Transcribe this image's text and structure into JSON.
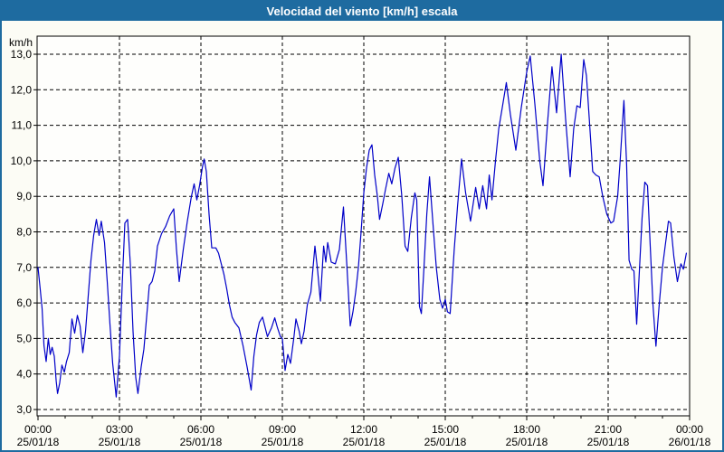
{
  "title": "Velocidad del viento [km/h] escala",
  "colors": {
    "titlebar": "#1E6BA0",
    "window_border": "#1E6BA0",
    "window_background": "#FCFCF5",
    "plot_background": "#FEFEFC",
    "grid": "#000000",
    "axis": "#000000",
    "tick_text": "#000000",
    "title_text": "#FFFFFF",
    "line": "#0000C8"
  },
  "chart_data": {
    "type": "line",
    "title": "Velocidad del viento [km/h] escala",
    "ylabel": "km/h",
    "xlabel": "",
    "grid": "dashed",
    "legend": "none",
    "ylim": [
      2.8,
      13.5
    ],
    "xlim_hours": [
      0,
      24
    ],
    "y_unit_label": "km/h",
    "y_ticks": [
      {
        "value": 13,
        "label": "13,0"
      },
      {
        "value": 12,
        "label": "12,0"
      },
      {
        "value": 11,
        "label": "11,0"
      },
      {
        "value": 10,
        "label": "10,0"
      },
      {
        "value": 9,
        "label": "9,0"
      },
      {
        "value": 8,
        "label": "8,0"
      },
      {
        "value": 7,
        "label": "7,0"
      },
      {
        "value": 6,
        "label": "6,0"
      },
      {
        "value": 5,
        "label": "5,0"
      },
      {
        "value": 4,
        "label": "4,0"
      },
      {
        "value": 3,
        "label": "3,0"
      }
    ],
    "x_ticks": [
      {
        "hour": 0,
        "time": "00:00",
        "date": "25/01/18"
      },
      {
        "hour": 3,
        "time": "03:00",
        "date": "25/01/18"
      },
      {
        "hour": 6,
        "time": "06:00",
        "date": "25/01/18"
      },
      {
        "hour": 9,
        "time": "09:00",
        "date": "25/01/18"
      },
      {
        "hour": 12,
        "time": "12:00",
        "date": "25/01/18"
      },
      {
        "hour": 15,
        "time": "15:00",
        "date": "25/01/18"
      },
      {
        "hour": 18,
        "time": "18:00",
        "date": "25/01/18"
      },
      {
        "hour": 21,
        "time": "21:00",
        "date": "25/01/18"
      },
      {
        "hour": 24,
        "time": "00:00",
        "date": "26/01/18"
      }
    ],
    "minor_x_tick_hours": 1,
    "series": [
      {
        "name": "Velocidad del viento",
        "color": "#0000C8",
        "points_hours_kmh": [
          [
            0.0,
            7.0
          ],
          [
            0.08,
            6.4
          ],
          [
            0.15,
            5.85
          ],
          [
            0.22,
            4.8
          ],
          [
            0.3,
            4.35
          ],
          [
            0.38,
            5.0
          ],
          [
            0.45,
            4.55
          ],
          [
            0.52,
            4.75
          ],
          [
            0.6,
            4.5
          ],
          [
            0.67,
            3.8
          ],
          [
            0.72,
            3.45
          ],
          [
            0.8,
            3.75
          ],
          [
            0.88,
            4.25
          ],
          [
            0.97,
            4.05
          ],
          [
            1.05,
            4.35
          ],
          [
            1.15,
            4.6
          ],
          [
            1.25,
            5.55
          ],
          [
            1.35,
            5.15
          ],
          [
            1.45,
            5.65
          ],
          [
            1.55,
            5.35
          ],
          [
            1.65,
            4.6
          ],
          [
            1.75,
            5.2
          ],
          [
            1.85,
            6.2
          ],
          [
            1.95,
            7.2
          ],
          [
            2.05,
            7.9
          ],
          [
            2.15,
            8.35
          ],
          [
            2.25,
            7.9
          ],
          [
            2.33,
            8.3
          ],
          [
            2.45,
            7.7
          ],
          [
            2.55,
            6.6
          ],
          [
            2.65,
            5.4
          ],
          [
            2.75,
            4.3
          ],
          [
            2.88,
            3.35
          ],
          [
            3.0,
            4.5
          ],
          [
            3.1,
            6.5
          ],
          [
            3.2,
            8.25
          ],
          [
            3.3,
            8.35
          ],
          [
            3.4,
            7.1
          ],
          [
            3.5,
            5.2
          ],
          [
            3.6,
            3.9
          ],
          [
            3.68,
            3.45
          ],
          [
            3.8,
            4.2
          ],
          [
            3.9,
            4.7
          ],
          [
            4.0,
            5.6
          ],
          [
            4.1,
            6.5
          ],
          [
            4.2,
            6.6
          ],
          [
            4.3,
            6.9
          ],
          [
            4.4,
            7.6
          ],
          [
            4.55,
            7.95
          ],
          [
            4.7,
            8.15
          ],
          [
            4.85,
            8.45
          ],
          [
            5.0,
            8.65
          ],
          [
            5.1,
            7.5
          ],
          [
            5.2,
            6.6
          ],
          [
            5.35,
            7.5
          ],
          [
            5.5,
            8.3
          ],
          [
            5.65,
            9.0
          ],
          [
            5.75,
            9.35
          ],
          [
            5.85,
            8.9
          ],
          [
            5.95,
            9.3
          ],
          [
            6.05,
            9.8
          ],
          [
            6.12,
            10.05
          ],
          [
            6.2,
            9.7
          ],
          [
            6.3,
            8.5
          ],
          [
            6.4,
            7.55
          ],
          [
            6.55,
            7.55
          ],
          [
            6.65,
            7.4
          ],
          [
            6.75,
            7.1
          ],
          [
            6.85,
            6.8
          ],
          [
            6.95,
            6.4
          ],
          [
            7.05,
            5.95
          ],
          [
            7.15,
            5.6
          ],
          [
            7.25,
            5.45
          ],
          [
            7.4,
            5.3
          ],
          [
            7.55,
            4.8
          ],
          [
            7.7,
            4.2
          ],
          [
            7.85,
            3.55
          ],
          [
            7.95,
            4.5
          ],
          [
            8.05,
            5.1
          ],
          [
            8.15,
            5.45
          ],
          [
            8.27,
            5.6
          ],
          [
            8.45,
            5.05
          ],
          [
            8.6,
            5.3
          ],
          [
            8.72,
            5.58
          ],
          [
            8.82,
            5.3
          ],
          [
            8.93,
            5.05
          ],
          [
            9.0,
            5.0
          ],
          [
            9.1,
            4.1
          ],
          [
            9.2,
            4.55
          ],
          [
            9.3,
            4.3
          ],
          [
            9.42,
            5.0
          ],
          [
            9.5,
            5.55
          ],
          [
            9.62,
            5.2
          ],
          [
            9.7,
            4.85
          ],
          [
            9.8,
            5.2
          ],
          [
            9.92,
            5.95
          ],
          [
            10.05,
            6.3
          ],
          [
            10.2,
            7.6
          ],
          [
            10.3,
            6.9
          ],
          [
            10.4,
            6.05
          ],
          [
            10.52,
            7.6
          ],
          [
            10.6,
            7.15
          ],
          [
            10.67,
            7.7
          ],
          [
            10.8,
            7.15
          ],
          [
            10.95,
            7.1
          ],
          [
            11.1,
            7.5
          ],
          [
            11.25,
            8.7
          ],
          [
            11.38,
            7.0
          ],
          [
            11.5,
            5.35
          ],
          [
            11.6,
            5.75
          ],
          [
            11.7,
            6.3
          ],
          [
            11.8,
            7.0
          ],
          [
            11.9,
            8.0
          ],
          [
            12.0,
            9.1
          ],
          [
            12.1,
            9.8
          ],
          [
            12.2,
            10.3
          ],
          [
            12.3,
            10.45
          ],
          [
            12.4,
            9.6
          ],
          [
            12.5,
            9.0
          ],
          [
            12.58,
            8.35
          ],
          [
            12.7,
            8.8
          ],
          [
            12.8,
            9.2
          ],
          [
            12.92,
            9.65
          ],
          [
            13.03,
            9.35
          ],
          [
            13.15,
            9.8
          ],
          [
            13.27,
            10.1
          ],
          [
            13.4,
            9.0
          ],
          [
            13.52,
            7.6
          ],
          [
            13.62,
            7.45
          ],
          [
            13.75,
            8.4
          ],
          [
            13.88,
            9.1
          ],
          [
            13.95,
            8.9
          ],
          [
            14.05,
            5.9
          ],
          [
            14.12,
            5.7
          ],
          [
            14.22,
            7.05
          ],
          [
            14.32,
            8.5
          ],
          [
            14.42,
            9.55
          ],
          [
            14.55,
            8.2
          ],
          [
            14.67,
            7.0
          ],
          [
            14.8,
            6.1
          ],
          [
            14.9,
            5.85
          ],
          [
            15.0,
            6.1
          ],
          [
            15.08,
            5.75
          ],
          [
            15.18,
            5.7
          ],
          [
            15.33,
            7.5
          ],
          [
            15.45,
            8.7
          ],
          [
            15.6,
            10.05
          ],
          [
            15.75,
            9.1
          ],
          [
            15.93,
            8.3
          ],
          [
            16.12,
            9.25
          ],
          [
            16.25,
            8.65
          ],
          [
            16.38,
            9.3
          ],
          [
            16.52,
            8.65
          ],
          [
            16.62,
            9.6
          ],
          [
            16.72,
            8.9
          ],
          [
            16.85,
            10.0
          ],
          [
            16.97,
            10.9
          ],
          [
            17.1,
            11.5
          ],
          [
            17.25,
            12.2
          ],
          [
            17.4,
            11.3
          ],
          [
            17.6,
            10.3
          ],
          [
            17.8,
            11.5
          ],
          [
            18.0,
            12.5
          ],
          [
            18.13,
            12.95
          ],
          [
            18.3,
            11.6
          ],
          [
            18.48,
            10.0
          ],
          [
            18.6,
            9.3
          ],
          [
            18.77,
            11.1
          ],
          [
            18.93,
            12.65
          ],
          [
            19.1,
            11.35
          ],
          [
            19.27,
            13.0
          ],
          [
            19.43,
            11.2
          ],
          [
            19.6,
            9.55
          ],
          [
            19.73,
            10.9
          ],
          [
            19.85,
            11.55
          ],
          [
            19.97,
            11.5
          ],
          [
            20.1,
            12.85
          ],
          [
            20.2,
            12.4
          ],
          [
            20.32,
            11.0
          ],
          [
            20.43,
            9.7
          ],
          [
            20.55,
            9.6
          ],
          [
            20.67,
            9.55
          ],
          [
            20.8,
            9.0
          ],
          [
            20.95,
            8.5
          ],
          [
            21.1,
            8.25
          ],
          [
            21.2,
            8.3
          ],
          [
            21.35,
            9.0
          ],
          [
            21.45,
            10.1
          ],
          [
            21.58,
            11.7
          ],
          [
            21.68,
            9.9
          ],
          [
            21.77,
            7.2
          ],
          [
            21.87,
            6.95
          ],
          [
            21.95,
            6.9
          ],
          [
            22.05,
            5.4
          ],
          [
            22.15,
            6.9
          ],
          [
            22.25,
            8.4
          ],
          [
            22.35,
            9.4
          ],
          [
            22.45,
            9.3
          ],
          [
            22.55,
            7.6
          ],
          [
            22.65,
            5.95
          ],
          [
            22.76,
            4.78
          ],
          [
            22.88,
            5.95
          ],
          [
            23.0,
            7.0
          ],
          [
            23.1,
            7.6
          ],
          [
            23.22,
            8.3
          ],
          [
            23.3,
            8.25
          ],
          [
            23.42,
            7.3
          ],
          [
            23.55,
            6.6
          ],
          [
            23.68,
            7.1
          ],
          [
            23.77,
            6.95
          ],
          [
            23.88,
            7.4
          ]
        ]
      }
    ]
  }
}
